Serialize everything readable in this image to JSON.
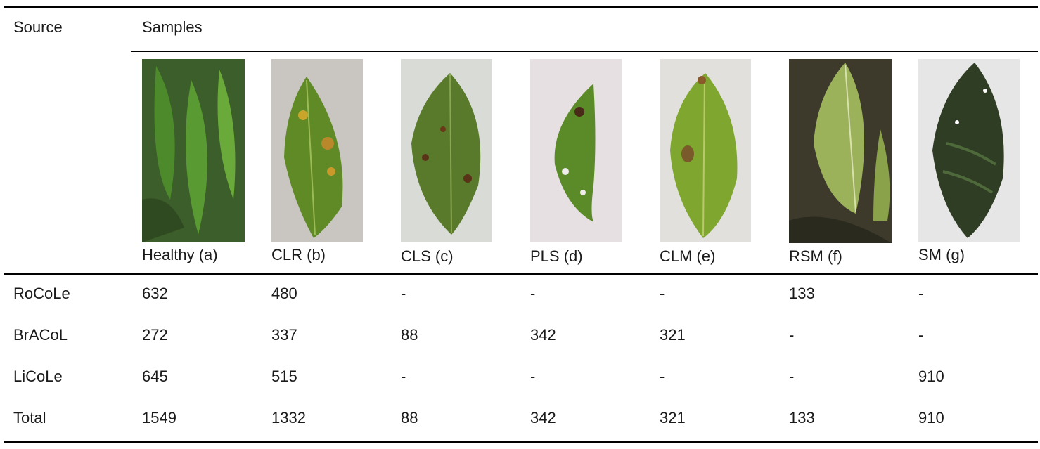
{
  "table": {
    "header": {
      "source": "Source",
      "samples": "Samples"
    },
    "sample_labels": [
      "Healthy (a)",
      "CLR (b)",
      "CLS (c)",
      "PLS (d)",
      "CLM (e)",
      "RSM (f)",
      "SM (g)"
    ],
    "rows": [
      {
        "source": "RoCoLe",
        "values": [
          "632",
          "480",
          "-",
          "-",
          "-",
          "133",
          "-"
        ]
      },
      {
        "source": "BrACoL",
        "values": [
          "272",
          "337",
          "88",
          "342",
          "321",
          "-",
          "-"
        ]
      },
      {
        "source": "LiCoLe",
        "values": [
          "645",
          "515",
          "-",
          "-",
          "-",
          "-",
          "910"
        ]
      },
      {
        "source": "Total",
        "values": [
          "1549",
          "1332",
          "88",
          "342",
          "321",
          "133",
          "910"
        ]
      }
    ]
  },
  "images": [
    {
      "name": "healthy-leaf-photo",
      "bg": "#3b5e2a",
      "leaf": "#4c8a2c"
    },
    {
      "name": "clr-leaf-photo",
      "bg": "#c9c6c2",
      "leaf": "#5f8a26"
    },
    {
      "name": "cls-leaf-photo",
      "bg": "#d9dbd6",
      "leaf": "#587a2a"
    },
    {
      "name": "pls-leaf-photo",
      "bg": "#e7e0e2",
      "leaf": "#5b8a28"
    },
    {
      "name": "clm-leaf-photo",
      "bg": "#e2e0dc",
      "leaf": "#7fa62e"
    },
    {
      "name": "rsm-leaf-photo",
      "bg": "#3d3a2c",
      "leaf": "#9cb25a"
    },
    {
      "name": "sm-leaf-photo",
      "bg": "#e6e6e6",
      "leaf": "#2f3d24"
    }
  ]
}
